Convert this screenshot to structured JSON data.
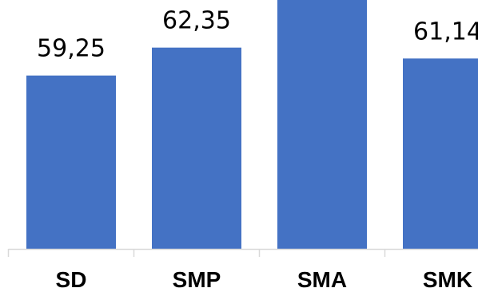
{
  "chart_data": {
    "type": "bar",
    "categories": [
      "SD",
      "SMP",
      "SMA",
      "SMK"
    ],
    "values": [
      59.25,
      62.35,
      69,
      61.14
    ],
    "value_labels": [
      "59,25",
      "62,35",
      null,
      "61,14"
    ],
    "color": "#4472c4",
    "ylim": [
      40,
      70
    ]
  }
}
